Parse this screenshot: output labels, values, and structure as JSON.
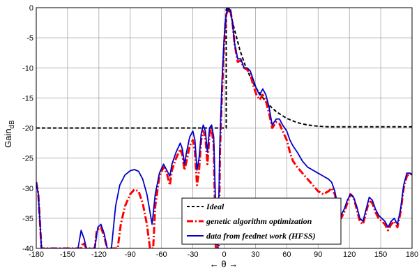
{
  "chart_data": {
    "type": "line",
    "title": "",
    "xlabel": "← θ →",
    "ylabel": {
      "main": "Gain",
      "sub": "dB"
    },
    "xlim": [
      -180,
      180
    ],
    "ylim": [
      -40,
      0
    ],
    "xticks": [
      -180,
      -150,
      -120,
      -90,
      -60,
      -30,
      0,
      30,
      60,
      90,
      120,
      150,
      180
    ],
    "yticks": [
      0,
      -5,
      -10,
      -15,
      -20,
      -25,
      -30,
      -35,
      -40
    ],
    "grid": true,
    "legend_position": "bottom-right",
    "series": [
      {
        "name": "Ideal",
        "color": "#000000",
        "style": "dashed",
        "points": [
          [
            -180,
            -20
          ],
          [
            2,
            -20
          ],
          [
            2,
            -0.3
          ],
          [
            3,
            0
          ],
          [
            6,
            -1
          ],
          [
            9,
            -3
          ],
          [
            12,
            -5
          ],
          [
            15,
            -7
          ],
          [
            20,
            -9.5
          ],
          [
            25,
            -11.5
          ],
          [
            30,
            -13.2
          ],
          [
            40,
            -15.7
          ],
          [
            50,
            -17.3
          ],
          [
            60,
            -18.4
          ],
          [
            70,
            -19.1
          ],
          [
            80,
            -19.5
          ],
          [
            90,
            -19.7
          ],
          [
            100,
            -19.8
          ],
          [
            180,
            -19.8
          ]
        ]
      },
      {
        "name": "genetic algorithm optimization",
        "color": "#ff0000",
        "style": "dashdot",
        "points": [
          [
            -180,
            -29
          ],
          [
            -178,
            -31
          ],
          [
            -175,
            -40
          ],
          [
            -137,
            -40
          ],
          [
            -135,
            -39
          ],
          [
            -132,
            -40
          ],
          [
            -124,
            -40
          ],
          [
            -122,
            -37
          ],
          [
            -118,
            -36.5
          ],
          [
            -115,
            -38
          ],
          [
            -112,
            -40
          ],
          [
            -102,
            -40
          ],
          [
            -99,
            -36
          ],
          [
            -95,
            -33
          ],
          [
            -90,
            -31
          ],
          [
            -86,
            -30.2
          ],
          [
            -82,
            -30.5
          ],
          [
            -78,
            -32.5
          ],
          [
            -74,
            -36
          ],
          [
            -71,
            -40
          ],
          [
            -68,
            -40
          ],
          [
            -66,
            -33
          ],
          [
            -62,
            -28
          ],
          [
            -58,
            -26.5
          ],
          [
            -55,
            -27.5
          ],
          [
            -52,
            -29.5
          ],
          [
            -50,
            -27
          ],
          [
            -46,
            -25
          ],
          [
            -42,
            -23.5
          ],
          [
            -40,
            -24.5
          ],
          [
            -38,
            -27
          ],
          [
            -36,
            -25.5
          ],
          [
            -33,
            -23
          ],
          [
            -30,
            -22
          ],
          [
            -28,
            -24
          ],
          [
            -26,
            -29.5
          ],
          [
            -24,
            -27
          ],
          [
            -22,
            -22
          ],
          [
            -20,
            -20.5
          ],
          [
            -18,
            -21.5
          ],
          [
            -16,
            -26
          ],
          [
            -14,
            -21
          ],
          [
            -12,
            -20
          ],
          [
            -10,
            -23
          ],
          [
            -8,
            -40
          ],
          [
            -5,
            -40
          ],
          [
            -4,
            -24
          ],
          [
            -2,
            -14
          ],
          [
            0,
            -6
          ],
          [
            2,
            -1.2
          ],
          [
            4,
            0
          ],
          [
            6,
            -0.4
          ],
          [
            8,
            -2.5
          ],
          [
            10,
            -6
          ],
          [
            13,
            -9
          ],
          [
            16,
            -8.8
          ],
          [
            19,
            -10
          ],
          [
            22,
            -10.3
          ],
          [
            25,
            -11
          ],
          [
            28,
            -13
          ],
          [
            31,
            -14.5
          ],
          [
            34,
            -15.3
          ],
          [
            37,
            -14.5
          ],
          [
            40,
            -15.5
          ],
          [
            43,
            -17.5
          ],
          [
            46,
            -20
          ],
          [
            50,
            -19
          ],
          [
            53,
            -19.3
          ],
          [
            56,
            -20.5
          ],
          [
            60,
            -22
          ],
          [
            63,
            -24
          ],
          [
            66,
            -25.5
          ],
          [
            70,
            -26.5
          ],
          [
            75,
            -27.5
          ],
          [
            80,
            -28.5
          ],
          [
            85,
            -29.5
          ],
          [
            90,
            -30.5
          ],
          [
            95,
            -31
          ],
          [
            100,
            -30.5
          ],
          [
            103,
            -30
          ],
          [
            106,
            -31
          ],
          [
            109,
            -33.5
          ],
          [
            112,
            -35
          ],
          [
            115,
            -34
          ],
          [
            118,
            -32.5
          ],
          [
            121,
            -31
          ],
          [
            124,
            -31.5
          ],
          [
            127,
            -33.5
          ],
          [
            130,
            -35.5
          ],
          [
            133,
            -36
          ],
          [
            136,
            -34
          ],
          [
            139,
            -32
          ],
          [
            142,
            -32.5
          ],
          [
            145,
            -34
          ],
          [
            148,
            -35
          ],
          [
            151,
            -35.5
          ],
          [
            154,
            -36
          ],
          [
            157,
            -37
          ],
          [
            160,
            -36
          ],
          [
            163,
            -35.5
          ],
          [
            166,
            -36.5
          ],
          [
            169,
            -34
          ],
          [
            172,
            -30
          ],
          [
            175,
            -28
          ],
          [
            178,
            -27.5
          ],
          [
            180,
            -27.8
          ]
        ]
      },
      {
        "name": "data from feednet work (HFSS)",
        "color": "#0000cc",
        "style": "solid",
        "points": [
          [
            -180,
            -29
          ],
          [
            -178,
            -31
          ],
          [
            -175,
            -40
          ],
          [
            -140,
            -40
          ],
          [
            -137,
            -37
          ],
          [
            -134,
            -38.5
          ],
          [
            -132,
            -40
          ],
          [
            -124,
            -40
          ],
          [
            -121,
            -36.5
          ],
          [
            -118,
            -36
          ],
          [
            -115,
            -37.5
          ],
          [
            -112,
            -40
          ],
          [
            -108,
            -40
          ],
          [
            -104,
            -33
          ],
          [
            -100,
            -29.5
          ],
          [
            -95,
            -27.8
          ],
          [
            -90,
            -27.1
          ],
          [
            -86,
            -26.9
          ],
          [
            -82,
            -27.2
          ],
          [
            -78,
            -28.5
          ],
          [
            -74,
            -31
          ],
          [
            -71,
            -34
          ],
          [
            -69,
            -36
          ],
          [
            -66,
            -31
          ],
          [
            -62,
            -27.5
          ],
          [
            -58,
            -26
          ],
          [
            -55,
            -27
          ],
          [
            -52,
            -28
          ],
          [
            -50,
            -26
          ],
          [
            -46,
            -24
          ],
          [
            -42,
            -22.5
          ],
          [
            -40,
            -23.5
          ],
          [
            -38,
            -26
          ],
          [
            -36,
            -24
          ],
          [
            -33,
            -21.5
          ],
          [
            -30,
            -20.5
          ],
          [
            -28,
            -22
          ],
          [
            -26,
            -27
          ],
          [
            -24,
            -25
          ],
          [
            -22,
            -21
          ],
          [
            -20,
            -19.5
          ],
          [
            -18,
            -20.5
          ],
          [
            -16,
            -24
          ],
          [
            -14,
            -20
          ],
          [
            -12,
            -19.5
          ],
          [
            -10,
            -21.5
          ],
          [
            -8,
            -34
          ],
          [
            -6,
            -40
          ],
          [
            -4,
            -22
          ],
          [
            -2,
            -12
          ],
          [
            0,
            -5
          ],
          [
            2,
            -1
          ],
          [
            4,
            0
          ],
          [
            6,
            -0.4
          ],
          [
            8,
            -2.5
          ],
          [
            10,
            -6
          ],
          [
            13,
            -8.5
          ],
          [
            16,
            -8.5
          ],
          [
            19,
            -10
          ],
          [
            22,
            -10
          ],
          [
            25,
            -10.5
          ],
          [
            28,
            -12
          ],
          [
            31,
            -13.5
          ],
          [
            34,
            -14.5
          ],
          [
            37,
            -13.5
          ],
          [
            40,
            -14.5
          ],
          [
            43,
            -16.5
          ],
          [
            46,
            -19.5
          ],
          [
            50,
            -18.5
          ],
          [
            53,
            -18.5
          ],
          [
            56,
            -19.5
          ],
          [
            60,
            -20.5
          ],
          [
            63,
            -22
          ],
          [
            66,
            -23
          ],
          [
            70,
            -24
          ],
          [
            75,
            -25.5
          ],
          [
            80,
            -26.5
          ],
          [
            85,
            -27
          ],
          [
            90,
            -27.5
          ],
          [
            95,
            -28
          ],
          [
            100,
            -28.5
          ],
          [
            103,
            -29
          ],
          [
            106,
            -30.5
          ],
          [
            109,
            -33
          ],
          [
            112,
            -34.5
          ],
          [
            115,
            -33.5
          ],
          [
            118,
            -32
          ],
          [
            121,
            -31
          ],
          [
            124,
            -31.5
          ],
          [
            127,
            -33
          ],
          [
            130,
            -35
          ],
          [
            133,
            -35.5
          ],
          [
            136,
            -33.5
          ],
          [
            139,
            -31.5
          ],
          [
            142,
            -32
          ],
          [
            145,
            -33.5
          ],
          [
            148,
            -34.5
          ],
          [
            151,
            -35
          ],
          [
            154,
            -35.5
          ],
          [
            157,
            -36.5
          ],
          [
            160,
            -35.5
          ],
          [
            163,
            -35
          ],
          [
            166,
            -36
          ],
          [
            169,
            -33.5
          ],
          [
            172,
            -29.5
          ],
          [
            175,
            -27.5
          ],
          [
            178,
            -27.5
          ],
          [
            180,
            -27.8
          ]
        ]
      }
    ]
  }
}
